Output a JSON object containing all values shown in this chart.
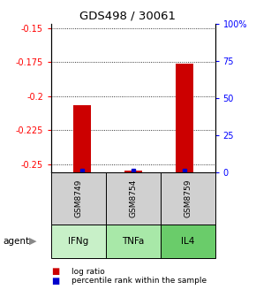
{
  "title": "GDS498 / 30061",
  "samples": [
    "GSM8749",
    "GSM8754",
    "GSM8759"
  ],
  "agents": [
    "IFNg",
    "TNFa",
    "IL4"
  ],
  "log_ratios": [
    -0.207,
    -0.255,
    -0.176
  ],
  "percentile_ranks": [
    0.02,
    0.02,
    0.02
  ],
  "ylim_left": [
    -0.256,
    -0.147
  ],
  "ylim_right": [
    0,
    100
  ],
  "yticks_left": [
    -0.25,
    -0.225,
    -0.2,
    -0.175,
    -0.15
  ],
  "ytick_labels_left": [
    "-0.25",
    "-0.225",
    "-0.2",
    "-0.175",
    "-0.15"
  ],
  "yticks_right": [
    0,
    25,
    50,
    75,
    100
  ],
  "ytick_labels_right": [
    "0",
    "25",
    "50",
    "75",
    "100%"
  ],
  "bar_color": "#cc0000",
  "percentile_color": "#0000cc",
  "cell_gray": "#d0d0d0",
  "agent_colors": [
    "#c8f0c8",
    "#a8e8a8",
    "#6acc6a"
  ],
  "legend_log_color": "#cc0000",
  "legend_pct_color": "#0000cc",
  "x_positions": [
    0,
    1,
    2
  ]
}
